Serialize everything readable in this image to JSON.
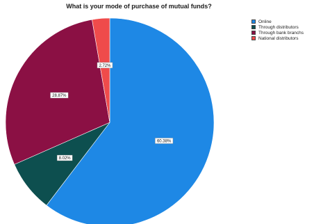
{
  "chart_data": {
    "type": "pie",
    "title": "What is your mode of purchase of mutual funds?",
    "slices": [
      {
        "label": "Online",
        "value": 60.38,
        "display": "60.38%",
        "color": "#1e88e5"
      },
      {
        "label": "Through distributors",
        "value": 8.02,
        "display": "8.02%",
        "color": "#0d4f4f"
      },
      {
        "label": "Through bank branchs",
        "value": 28.87,
        "display": "28.87%",
        "color": "#8b1044"
      },
      {
        "label": "National distributors",
        "value": 2.72,
        "display": "2.72%",
        "color": "#ef4b4b"
      }
    ],
    "legend_position": "top-right",
    "start_angle_deg": 0,
    "direction": "clockwise"
  }
}
